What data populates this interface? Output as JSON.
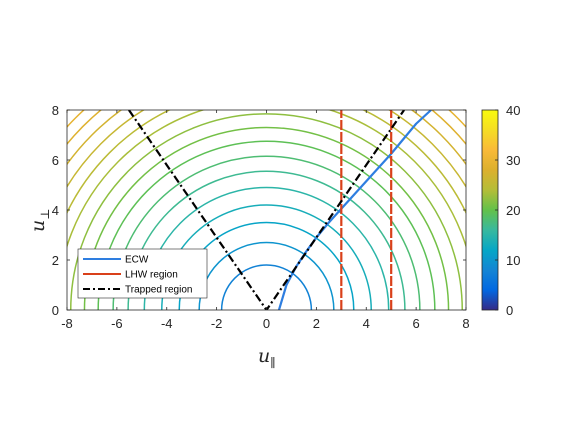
{
  "chart_data": {
    "type": "contour",
    "xlabel": "u",
    "xlabel_sub": "∥",
    "ylabel": "u",
    "ylabel_sub": "⊥",
    "xlim": [
      -8,
      8
    ],
    "ylim": [
      0,
      8
    ],
    "xticks": [
      "-8",
      "-6",
      "-4",
      "-2",
      "0",
      "2",
      "4",
      "6",
      "8"
    ],
    "yticks": [
      "0",
      "2",
      "4",
      "6",
      "8"
    ],
    "contour_levels": [
      1.8,
      2.7,
      3.5,
      4.2,
      4.9,
      5.55,
      6.15,
      6.75,
      7.3,
      7.85,
      8.4,
      8.9,
      9.4,
      9.9,
      10.4,
      10.85,
      11.3,
      11.75,
      12.2
    ],
    "corner_levels": [
      12.6,
      13.0,
      13.4
    ],
    "colorbar": {
      "min": 0,
      "max": 40,
      "ticks": [
        "0",
        "10",
        "20",
        "30",
        "40"
      ],
      "colormap": "parula"
    },
    "series": [
      {
        "name": "ECW",
        "style": "solid",
        "color": "#2e7ee0",
        "x": [
          0.5,
          0.8,
          1.2,
          1.6,
          2.0,
          2.5,
          3.0,
          3.5,
          4.0,
          4.5,
          5.0,
          5.5,
          6.0,
          6.6
        ],
        "y": [
          0,
          1.0,
          1.75,
          2.35,
          2.9,
          3.5,
          4.05,
          4.6,
          5.15,
          5.7,
          6.25,
          6.85,
          7.45,
          8.0
        ]
      },
      {
        "name": "LHW region",
        "style": "dashed",
        "color": "#d9401a",
        "x_positions": [
          3,
          5
        ]
      },
      {
        "name": "Trapped region",
        "style": "dash-dot",
        "color": "#000000",
        "slope": 1.45
      }
    ],
    "legend_position": "lower-left"
  }
}
